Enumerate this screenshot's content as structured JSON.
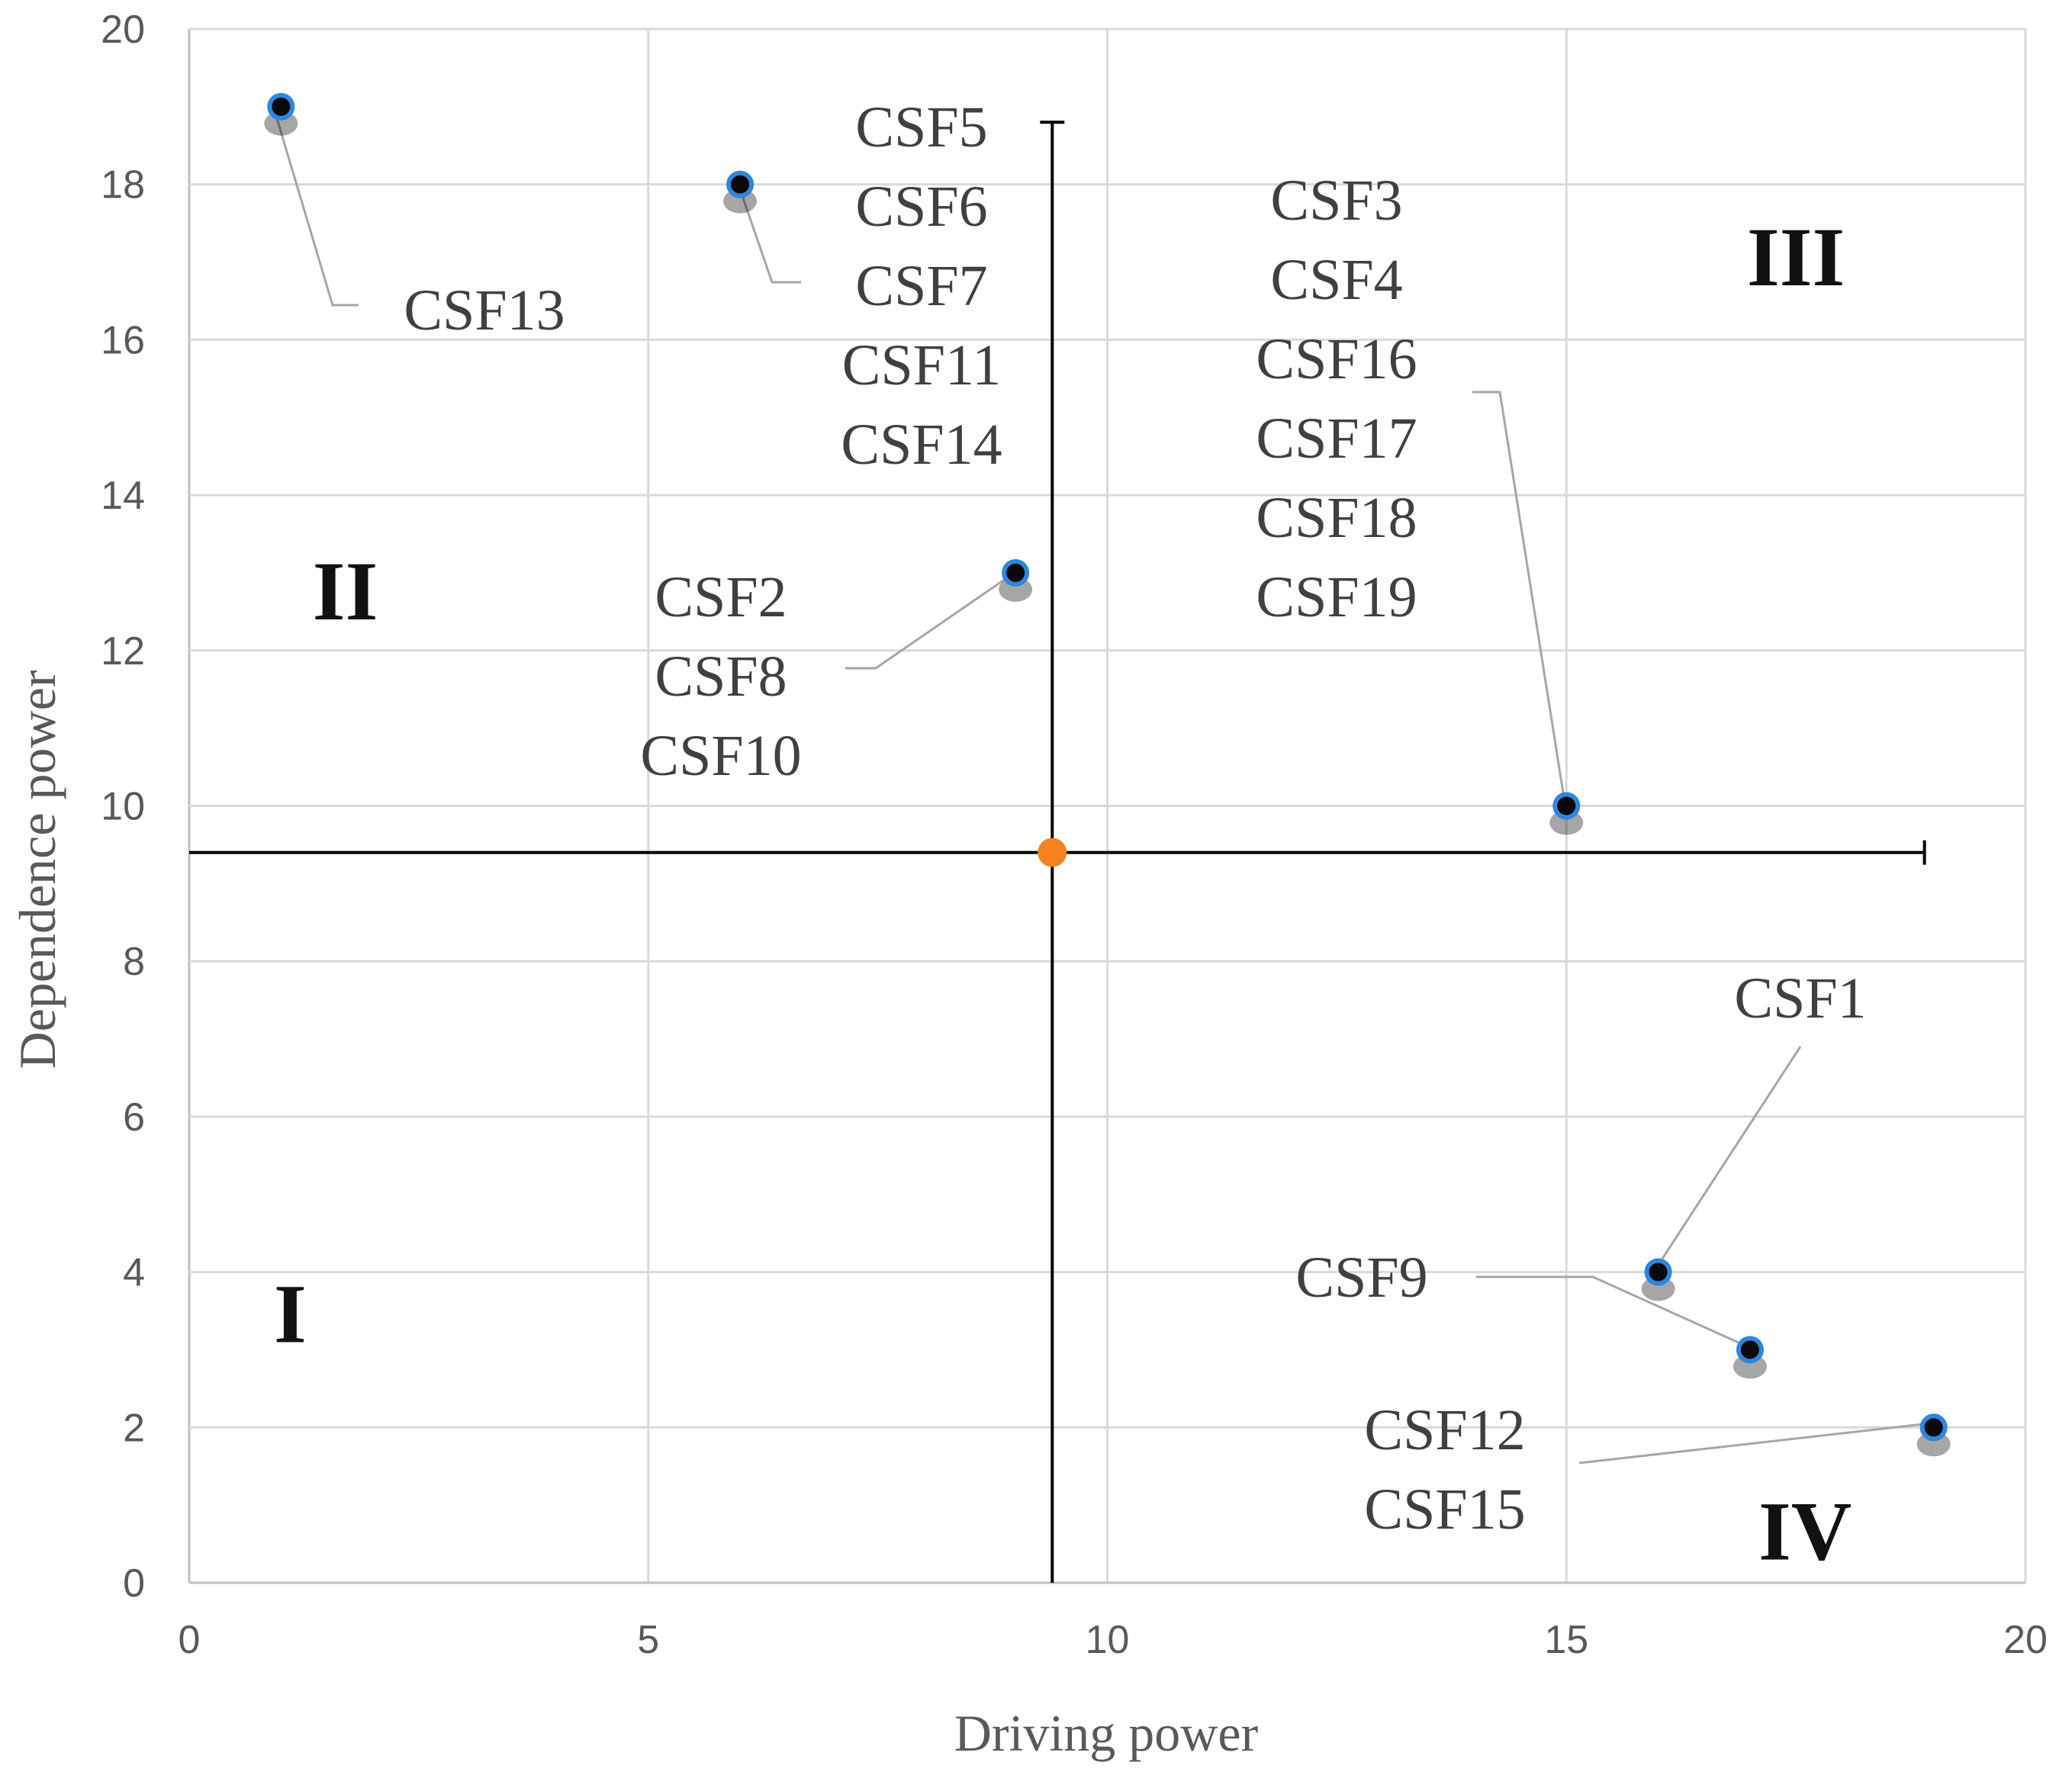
{
  "chart_data": {
    "type": "scatter",
    "title": "",
    "xlabel": "Driving power",
    "ylabel": "Dependence power",
    "xlim": [
      0,
      20
    ],
    "ylim": [
      0,
      20
    ],
    "x_ticks": [
      "0",
      "5",
      "10",
      "15",
      "20"
    ],
    "y_ticks": [
      "0",
      "2",
      "4",
      "6",
      "8",
      "10",
      "12",
      "14",
      "16",
      "18",
      "20"
    ],
    "grid": true,
    "divider": {
      "x": 9.4,
      "y": 9.4,
      "x_range": [
        0,
        18.9
      ],
      "y_range": [
        0,
        18.8
      ]
    },
    "points": [
      {
        "x": 1,
        "y": 19,
        "labels": [
          "CSF13"
        ]
      },
      {
        "x": 6,
        "y": 18,
        "labels": [
          "CSF5",
          "CSF6",
          "CSF7",
          "CSF11",
          "CSF14"
        ]
      },
      {
        "x": 9,
        "y": 13,
        "labels": [
          "CSF2",
          "CSF8",
          "CSF10"
        ]
      },
      {
        "x": 15,
        "y": 10,
        "labels": [
          "CSF3",
          "CSF4",
          "CSF16",
          "CSF17",
          "CSF18",
          "CSF19"
        ]
      },
      {
        "x": 16,
        "y": 4,
        "labels": [
          "CSF1"
        ]
      },
      {
        "x": 17,
        "y": 3,
        "labels": [
          "CSF9"
        ]
      },
      {
        "x": 19,
        "y": 2,
        "labels": [
          "CSF12",
          "CSF15"
        ]
      }
    ],
    "quadrants": [
      {
        "label": "I",
        "x": 1.1,
        "y": 3.1
      },
      {
        "label": "II",
        "x": 1.7,
        "y": 12.4
      },
      {
        "label": "III",
        "x": 17.5,
        "y": 16.7
      },
      {
        "label": "IV",
        "x": 17.6,
        "y": 0.3
      }
    ],
    "colors": {
      "point_fill": "#0a0a0a",
      "point_ring": "#2e86de",
      "center_point": "#f5821f",
      "grid": "#d9d9d9",
      "axis": "#bfbfbf",
      "divider": "#000000",
      "leader": "#a6a6a6"
    }
  }
}
